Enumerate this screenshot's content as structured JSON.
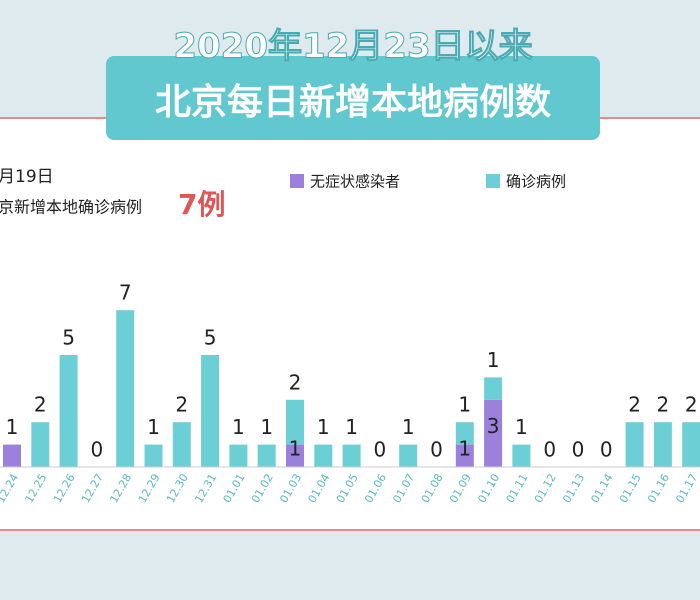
{
  "chart_data": {
    "type": "bar",
    "stacked": true,
    "title": "2020年12月23日以来",
    "subtitle": "北京每日新增本地病例数",
    "note_date": "月19日",
    "note_text": "京新增本地确诊病例",
    "note_highlight": "7例",
    "categories": [
      "12.24",
      "12.25",
      "12.26",
      "12.27",
      "12.28",
      "12.29",
      "12.30",
      "12.31",
      "01.01",
      "01.02",
      "01.03",
      "01.04",
      "01.05",
      "01.06",
      "01.07",
      "01.08",
      "01.09",
      "01.10",
      "01.11",
      "01.12",
      "01.13",
      "01.14",
      "01.15",
      "01.16",
      "01.17"
    ],
    "series": [
      {
        "name": "无症状感染者",
        "color": "#9b80dc",
        "values": [
          1,
          0,
          0,
          0,
          0,
          0,
          0,
          0,
          0,
          0,
          1,
          0,
          0,
          0,
          0,
          0,
          1,
          3,
          0,
          0,
          0,
          0,
          0,
          0,
          0
        ]
      },
      {
        "name": "确诊病例",
        "color": "#6ccfd6",
        "values": [
          0,
          2,
          5,
          0,
          7,
          1,
          2,
          5,
          1,
          1,
          2,
          1,
          1,
          0,
          1,
          0,
          1,
          1,
          1,
          0,
          0,
          0,
          2,
          2,
          2
        ]
      }
    ]
  }
}
